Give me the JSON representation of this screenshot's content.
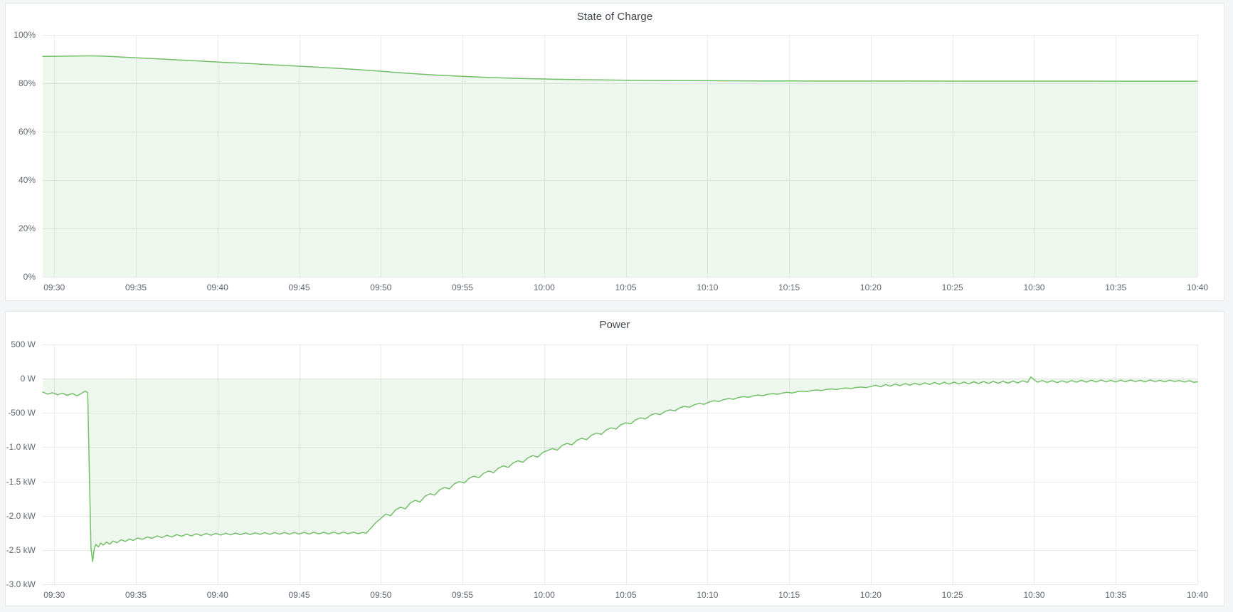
{
  "page": {
    "background": "#f4f5f7",
    "panel_background": "#ffffff",
    "panel_border": "#e3e5e9",
    "accent_green": "#73bf69"
  },
  "chart_data": [
    {
      "id": "state-of-charge",
      "type": "area",
      "title": "State of Charge",
      "legend": "none",
      "grid": true,
      "line_color": "#73bf69",
      "fill_color": "rgba(115,191,105,0.12)",
      "grid_color": "#e9eaec",
      "unit": "percent",
      "x": {
        "tick_labels": [
          "09:30",
          "09:35",
          "09:40",
          "09:45",
          "09:50",
          "09:55",
          "10:00",
          "10:05",
          "10:10",
          "10:15",
          "10:20",
          "10:25",
          "10:30",
          "10:35",
          "10:40"
        ],
        "tick_minutes": [
          0,
          5,
          10,
          15,
          20,
          25,
          30,
          35,
          40,
          45,
          50,
          55,
          60,
          65,
          70
        ],
        "domain_minutes": [
          -0.75,
          70
        ]
      },
      "y": {
        "ticks": [
          {
            "value": 100,
            "label": "100%"
          },
          {
            "value": 80,
            "label": "80%"
          },
          {
            "value": 60,
            "label": "60%"
          },
          {
            "value": 40,
            "label": "40%"
          },
          {
            "value": 20,
            "label": "20%"
          },
          {
            "value": 0,
            "label": "0%"
          }
        ],
        "domain": [
          0,
          100
        ]
      },
      "baseline": 0,
      "points": [
        [
          -0.7,
          91.1
        ],
        [
          0,
          91.15
        ],
        [
          0.8,
          91.22
        ],
        [
          1.6,
          91.3
        ],
        [
          2.2,
          91.33
        ],
        [
          2.8,
          91.27
        ],
        [
          3.5,
          91.05
        ],
        [
          4.5,
          90.72
        ],
        [
          5.5,
          90.38
        ],
        [
          6.5,
          90.03
        ],
        [
          7.5,
          89.68
        ],
        [
          8.5,
          89.33
        ],
        [
          9.5,
          88.98
        ],
        [
          10.5,
          88.63
        ],
        [
          11.5,
          88.28
        ],
        [
          12.5,
          87.93
        ],
        [
          13.5,
          87.58
        ],
        [
          14.5,
          87.23
        ],
        [
          15.5,
          86.88
        ],
        [
          16.5,
          86.5
        ],
        [
          17.5,
          86.1
        ],
        [
          18.5,
          85.7
        ],
        [
          19.5,
          85.2
        ],
        [
          20.5,
          84.7
        ],
        [
          21.5,
          84.2
        ],
        [
          22.5,
          83.75
        ],
        [
          23.5,
          83.35
        ],
        [
          24.5,
          83.0
        ],
        [
          25.5,
          82.7
        ],
        [
          26.5,
          82.45
        ],
        [
          27.5,
          82.2
        ],
        [
          28.5,
          82.0
        ],
        [
          29.5,
          81.85
        ],
        [
          30.5,
          81.7
        ],
        [
          32,
          81.5
        ],
        [
          33.5,
          81.38
        ],
        [
          35,
          81.25
        ],
        [
          37,
          81.15
        ],
        [
          39,
          81.08
        ],
        [
          41,
          81.02
        ],
        [
          43,
          80.98
        ],
        [
          45,
          80.95
        ],
        [
          48,
          80.92
        ],
        [
          52,
          80.9
        ],
        [
          56,
          80.88
        ],
        [
          60,
          80.87
        ],
        [
          65,
          80.86
        ],
        [
          70,
          80.85
        ]
      ]
    },
    {
      "id": "power",
      "type": "area",
      "title": "Power",
      "legend": "none",
      "grid": true,
      "line_color": "#73bf69",
      "fill_color": "rgba(115,191,105,0.12)",
      "grid_color": "#e9eaec",
      "unit": "watt",
      "x": {
        "tick_labels": [
          "09:30",
          "09:35",
          "09:40",
          "09:45",
          "09:50",
          "09:55",
          "10:00",
          "10:05",
          "10:10",
          "10:15",
          "10:20",
          "10:25",
          "10:30",
          "10:35",
          "10:40"
        ],
        "tick_minutes": [
          0,
          5,
          10,
          15,
          20,
          25,
          30,
          35,
          40,
          45,
          50,
          55,
          60,
          65,
          70
        ],
        "domain_minutes": [
          -0.75,
          70
        ]
      },
      "y": {
        "ticks": [
          {
            "value": 500,
            "label": "500 W"
          },
          {
            "value": 0,
            "label": "0 W"
          },
          {
            "value": -500,
            "label": "-500 W"
          },
          {
            "value": -1000,
            "label": "-1.0 kW"
          },
          {
            "value": -1500,
            "label": "-1.5 kW"
          },
          {
            "value": -2000,
            "label": "-2.0 kW"
          },
          {
            "value": -2500,
            "label": "-2.5 kW"
          },
          {
            "value": -3000,
            "label": "-3.0 kW"
          }
        ],
        "domain": [
          -3000,
          500
        ]
      },
      "baseline": 0,
      "points": [
        [
          -0.7,
          -195
        ],
        [
          -0.4,
          -225
        ],
        [
          -0.1,
          -205
        ],
        [
          0.2,
          -235
        ],
        [
          0.5,
          -210
        ],
        [
          0.8,
          -245
        ],
        [
          1.1,
          -215
        ],
        [
          1.4,
          -250
        ],
        [
          1.7,
          -210
        ],
        [
          1.9,
          -180
        ],
        [
          2.05,
          -205
        ],
        [
          2.15,
          -1400
        ],
        [
          2.25,
          -2480
        ],
        [
          2.35,
          -2670
        ],
        [
          2.45,
          -2480
        ],
        [
          2.55,
          -2420
        ],
        [
          2.7,
          -2455
        ],
        [
          2.85,
          -2400
        ],
        [
          3.0,
          -2430
        ],
        [
          3.2,
          -2385
        ],
        [
          3.4,
          -2415
        ],
        [
          3.6,
          -2370
        ],
        [
          3.85,
          -2395
        ],
        [
          4.1,
          -2350
        ],
        [
          4.35,
          -2375
        ],
        [
          4.6,
          -2340
        ],
        [
          4.85,
          -2360
        ],
        [
          5.1,
          -2325
        ],
        [
          5.4,
          -2345
        ],
        [
          5.7,
          -2310
        ],
        [
          6.0,
          -2330
        ],
        [
          6.3,
          -2295
        ],
        [
          6.6,
          -2320
        ],
        [
          6.9,
          -2285
        ],
        [
          7.2,
          -2310
        ],
        [
          7.5,
          -2275
        ],
        [
          7.8,
          -2300
        ],
        [
          8.1,
          -2270
        ],
        [
          8.4,
          -2295
        ],
        [
          8.7,
          -2265
        ],
        [
          9.0,
          -2290
        ],
        [
          9.3,
          -2260
        ],
        [
          9.6,
          -2285
        ],
        [
          9.9,
          -2258
        ],
        [
          10.2,
          -2282
        ],
        [
          10.5,
          -2255
        ],
        [
          10.8,
          -2280
        ],
        [
          11.1,
          -2252
        ],
        [
          11.4,
          -2278
        ],
        [
          11.7,
          -2250
        ],
        [
          12.0,
          -2275
        ],
        [
          12.3,
          -2250
        ],
        [
          12.6,
          -2272
        ],
        [
          12.9,
          -2248
        ],
        [
          13.2,
          -2272
        ],
        [
          13.5,
          -2246
        ],
        [
          13.8,
          -2270
        ],
        [
          14.1,
          -2245
        ],
        [
          14.4,
          -2270
        ],
        [
          14.7,
          -2244
        ],
        [
          15.0,
          -2268
        ],
        [
          15.3,
          -2243
        ],
        [
          15.6,
          -2268
        ],
        [
          15.9,
          -2242
        ],
        [
          16.2,
          -2266
        ],
        [
          16.5,
          -2242
        ],
        [
          16.8,
          -2266
        ],
        [
          17.1,
          -2240
        ],
        [
          17.4,
          -2265
        ],
        [
          17.7,
          -2240
        ],
        [
          18.0,
          -2264
        ],
        [
          18.3,
          -2240
        ],
        [
          18.6,
          -2262
        ],
        [
          18.9,
          -2245
        ],
        [
          19.1,
          -2255
        ],
        [
          19.4,
          -2180
        ],
        [
          19.7,
          -2100
        ],
        [
          20.0,
          -2040
        ],
        [
          20.3,
          -1975
        ],
        [
          20.6,
          -2000
        ],
        [
          20.9,
          -1915
        ],
        [
          21.2,
          -1875
        ],
        [
          21.5,
          -1900
        ],
        [
          21.8,
          -1815
        ],
        [
          22.1,
          -1775
        ],
        [
          22.4,
          -1800
        ],
        [
          22.7,
          -1715
        ],
        [
          23.0,
          -1680
        ],
        [
          23.3,
          -1700
        ],
        [
          23.6,
          -1622
        ],
        [
          23.9,
          -1588
        ],
        [
          24.2,
          -1608
        ],
        [
          24.5,
          -1535
        ],
        [
          24.8,
          -1502
        ],
        [
          25.1,
          -1522
        ],
        [
          25.4,
          -1455
        ],
        [
          25.7,
          -1422
        ],
        [
          26.0,
          -1445
        ],
        [
          26.3,
          -1380
        ],
        [
          26.6,
          -1348
        ],
        [
          26.9,
          -1370
        ],
        [
          27.2,
          -1305
        ],
        [
          27.5,
          -1272
        ],
        [
          27.8,
          -1295
        ],
        [
          28.1,
          -1230
        ],
        [
          28.4,
          -1198
        ],
        [
          28.7,
          -1220
        ],
        [
          29.0,
          -1155
        ],
        [
          29.3,
          -1122
        ],
        [
          29.6,
          -1145
        ],
        [
          29.9,
          -1080
        ],
        [
          30.2,
          -1048
        ],
        [
          30.5,
          -1020
        ],
        [
          30.8,
          -1042
        ],
        [
          31.1,
          -975
        ],
        [
          31.4,
          -945
        ],
        [
          31.7,
          -965
        ],
        [
          32.0,
          -900
        ],
        [
          32.3,
          -870
        ],
        [
          32.6,
          -890
        ],
        [
          32.9,
          -825
        ],
        [
          33.2,
          -795
        ],
        [
          33.5,
          -812
        ],
        [
          33.8,
          -748
        ],
        [
          34.1,
          -718
        ],
        [
          34.4,
          -735
        ],
        [
          34.7,
          -672
        ],
        [
          35.0,
          -645
        ],
        [
          35.3,
          -660
        ],
        [
          35.6,
          -600
        ],
        [
          35.9,
          -572
        ],
        [
          36.2,
          -588
        ],
        [
          36.5,
          -535
        ],
        [
          36.8,
          -510
        ],
        [
          37.1,
          -525
        ],
        [
          37.4,
          -478
        ],
        [
          37.7,
          -455
        ],
        [
          38.0,
          -468
        ],
        [
          38.3,
          -425
        ],
        [
          38.6,
          -405
        ],
        [
          38.9,
          -418
        ],
        [
          39.2,
          -380
        ],
        [
          39.5,
          -362
        ],
        [
          39.8,
          -373
        ],
        [
          40.1,
          -340
        ],
        [
          40.4,
          -322
        ],
        [
          40.7,
          -333
        ],
        [
          41.0,
          -305
        ],
        [
          41.3,
          -290
        ],
        [
          41.6,
          -300
        ],
        [
          41.9,
          -275
        ],
        [
          42.2,
          -262
        ],
        [
          42.5,
          -272
        ],
        [
          42.8,
          -250
        ],
        [
          43.1,
          -238
        ],
        [
          43.4,
          -248
        ],
        [
          43.7,
          -228
        ],
        [
          44.0,
          -218
        ],
        [
          44.3,
          -227
        ],
        [
          44.6,
          -208
        ],
        [
          44.9,
          -198
        ],
        [
          45.2,
          -208
        ],
        [
          45.5,
          -190
        ],
        [
          45.8,
          -182
        ],
        [
          46.1,
          -190
        ],
        [
          46.4,
          -172
        ],
        [
          46.7,
          -165
        ],
        [
          47.0,
          -173
        ],
        [
          47.3,
          -156
        ],
        [
          47.6,
          -150
        ],
        [
          47.9,
          -158
        ],
        [
          48.2,
          -142
        ],
        [
          48.5,
          -136
        ],
        [
          48.8,
          -144
        ],
        [
          49.1,
          -128
        ],
        [
          49.4,
          -122
        ],
        [
          49.7,
          -130
        ],
        [
          50.0,
          -115
        ],
        [
          50.3,
          -95
        ],
        [
          50.6,
          -120
        ],
        [
          50.9,
          -85
        ],
        [
          51.2,
          -110
        ],
        [
          51.5,
          -78
        ],
        [
          51.8,
          -102
        ],
        [
          52.1,
          -70
        ],
        [
          52.4,
          -95
        ],
        [
          52.7,
          -65
        ],
        [
          53.0,
          -90
        ],
        [
          53.3,
          -60
        ],
        [
          53.6,
          -85
        ],
        [
          53.9,
          -55
        ],
        [
          54.2,
          -82
        ],
        [
          54.5,
          -52
        ],
        [
          54.8,
          -80
        ],
        [
          55.1,
          -50
        ],
        [
          55.4,
          -78
        ],
        [
          55.7,
          -48
        ],
        [
          56.0,
          -75
        ],
        [
          56.3,
          -45
        ],
        [
          56.6,
          -72
        ],
        [
          56.9,
          -42
        ],
        [
          57.2,
          -70
        ],
        [
          57.5,
          -40
        ],
        [
          57.8,
          -68
        ],
        [
          58.1,
          -38
        ],
        [
          58.4,
          -66
        ],
        [
          58.7,
          -36
        ],
        [
          59.0,
          -62
        ],
        [
          59.3,
          -32
        ],
        [
          59.6,
          -55
        ],
        [
          59.8,
          25
        ],
        [
          60.0,
          -15
        ],
        [
          60.2,
          -50
        ],
        [
          60.5,
          -28
        ],
        [
          60.8,
          -55
        ],
        [
          61.1,
          -30
        ],
        [
          61.4,
          -58
        ],
        [
          61.7,
          -32
        ],
        [
          62.0,
          -55
        ],
        [
          62.3,
          -28
        ],
        [
          62.6,
          -52
        ],
        [
          62.9,
          -25
        ],
        [
          63.2,
          -50
        ],
        [
          63.5,
          -22
        ],
        [
          63.8,
          -48
        ],
        [
          64.1,
          -20
        ],
        [
          64.4,
          -46
        ],
        [
          64.7,
          -25
        ],
        [
          65.0,
          -48
        ],
        [
          65.3,
          -22
        ],
        [
          65.6,
          -45
        ],
        [
          65.9,
          -20
        ],
        [
          66.2,
          -42
        ],
        [
          66.5,
          -24
        ],
        [
          66.8,
          -45
        ],
        [
          67.1,
          -20
        ],
        [
          67.4,
          -42
        ],
        [
          67.7,
          -25
        ],
        [
          68.0,
          -45
        ],
        [
          68.3,
          -22
        ],
        [
          68.6,
          -40
        ],
        [
          68.9,
          -28
        ],
        [
          69.2,
          -48
        ],
        [
          69.5,
          -30
        ],
        [
          69.8,
          -55
        ],
        [
          70.0,
          -45
        ]
      ]
    }
  ]
}
